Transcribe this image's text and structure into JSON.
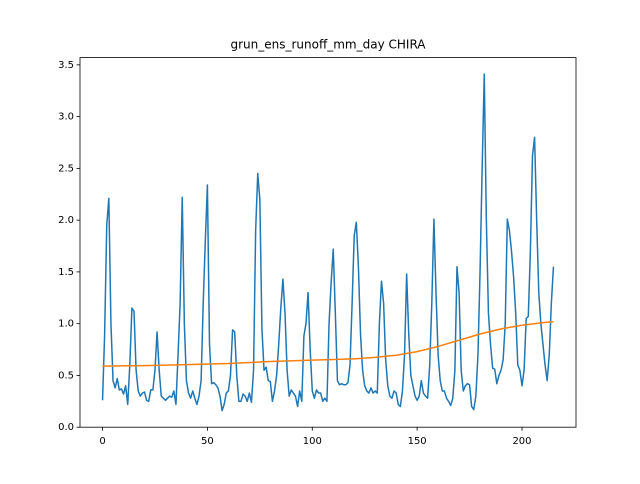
{
  "chart_data": {
    "type": "line",
    "title": "grun_ens_runoff_mm_day CHIRA",
    "xlim": [
      -10.75,
      225.75
    ],
    "xticks": [
      0,
      50,
      100,
      150,
      200
    ],
    "ylim": [
      0.0,
      3.57
    ],
    "yticks": [
      {
        "value": 0,
        "label": "0.0"
      },
      0.5,
      {
        "value": 1,
        "label": "1.0"
      },
      1.5,
      {
        "value": 2,
        "label": "2.0"
      },
      2.5,
      {
        "value": 3,
        "label": "3.0"
      },
      3.5
    ],
    "series": [
      {
        "color": "#1f77b4",
        "x": [
          0,
          1,
          2,
          3,
          4,
          5,
          6,
          7,
          8,
          9,
          10,
          11,
          12,
          13,
          14,
          15,
          16,
          17,
          18,
          19,
          20,
          21,
          22,
          23,
          24,
          25,
          26,
          27,
          28,
          29,
          30,
          31,
          32,
          33,
          34,
          35,
          36,
          37,
          38,
          39,
          40,
          41,
          42,
          43,
          44,
          45,
          46,
          47,
          48,
          49,
          50,
          51,
          52,
          53,
          54,
          55,
          56,
          57,
          58,
          59,
          60,
          61,
          62,
          63,
          64,
          65,
          66,
          67,
          68,
          69,
          70,
          71,
          72,
          73,
          74,
          75,
          76,
          77,
          78,
          79,
          80,
          81,
          82,
          83,
          84,
          85,
          86,
          87,
          88,
          89,
          90,
          91,
          92,
          93,
          94,
          95,
          96,
          97,
          98,
          99,
          100,
          101,
          102,
          103,
          104,
          105,
          106,
          107,
          108,
          109,
          110,
          111,
          112,
          113,
          114,
          115,
          116,
          117,
          118,
          119,
          120,
          121,
          122,
          123,
          124,
          125,
          126,
          127,
          128,
          129,
          130,
          131,
          132,
          133,
          134,
          135,
          136,
          137,
          138,
          139,
          140,
          141,
          142,
          143,
          144,
          145,
          146,
          147,
          148,
          149,
          150,
          151,
          152,
          153,
          154,
          155,
          156,
          157,
          158,
          159,
          160,
          161,
          162,
          163,
          164,
          165,
          166,
          167,
          168,
          169,
          170,
          171,
          172,
          173,
          174,
          175,
          176,
          177,
          178,
          179,
          180,
          181,
          182,
          183,
          184,
          185,
          186,
          187,
          188,
          189,
          190,
          191,
          192,
          193,
          194,
          195,
          196,
          197,
          198,
          199,
          200,
          201,
          202,
          203,
          204,
          205,
          206,
          207,
          208,
          209,
          210,
          211,
          212,
          213,
          214,
          215
        ],
        "values": [
          0.26,
          0.9,
          1.95,
          2.21,
          1.0,
          0.45,
          0.38,
          0.47,
          0.36,
          0.37,
          0.32,
          0.4,
          0.22,
          0.6,
          1.15,
          1.12,
          0.55,
          0.35,
          0.3,
          0.33,
          0.34,
          0.26,
          0.25,
          0.36,
          0.36,
          0.55,
          0.92,
          0.55,
          0.3,
          0.28,
          0.26,
          0.28,
          0.3,
          0.29,
          0.35,
          0.22,
          0.7,
          1.2,
          2.22,
          1.0,
          0.45,
          0.33,
          0.28,
          0.35,
          0.28,
          0.22,
          0.3,
          0.45,
          1.2,
          1.8,
          2.34,
          0.8,
          0.42,
          0.43,
          0.41,
          0.38,
          0.3,
          0.16,
          0.22,
          0.33,
          0.35,
          0.5,
          0.94,
          0.92,
          0.5,
          0.25,
          0.25,
          0.32,
          0.3,
          0.25,
          0.33,
          0.24,
          0.55,
          1.9,
          2.45,
          2.2,
          0.95,
          0.55,
          0.58,
          0.45,
          0.44,
          0.25,
          0.35,
          0.5,
          0.8,
          1.15,
          1.43,
          1.1,
          0.55,
          0.3,
          0.36,
          0.33,
          0.3,
          0.2,
          0.35,
          0.25,
          0.88,
          1.0,
          1.3,
          0.75,
          0.35,
          0.28,
          0.36,
          0.33,
          0.33,
          0.25,
          0.28,
          0.25,
          1.0,
          1.4,
          1.72,
          1.1,
          0.45,
          0.41,
          0.42,
          0.41,
          0.41,
          0.43,
          0.6,
          1.2,
          1.85,
          1.98,
          1.55,
          0.9,
          0.55,
          0.4,
          0.35,
          0.33,
          0.38,
          0.33,
          0.35,
          0.33,
          1.0,
          1.41,
          1.2,
          0.65,
          0.4,
          0.3,
          0.28,
          0.35,
          0.33,
          0.22,
          0.2,
          0.35,
          0.7,
          1.48,
          0.9,
          0.5,
          0.4,
          0.3,
          0.26,
          0.3,
          0.45,
          0.33,
          0.3,
          0.28,
          0.6,
          1.2,
          2.01,
          1.3,
          0.7,
          0.45,
          0.35,
          0.35,
          0.28,
          0.25,
          0.21,
          0.28,
          0.55,
          1.55,
          1.3,
          0.55,
          0.35,
          0.4,
          0.42,
          0.41,
          0.2,
          0.17,
          0.3,
          0.7,
          1.5,
          2.5,
          3.41,
          2.0,
          1.1,
          0.8,
          0.57,
          0.56,
          0.42,
          0.5,
          0.55,
          0.65,
          1.0,
          2.01,
          1.9,
          1.7,
          1.45,
          1.1,
          0.6,
          0.55,
          0.4,
          0.55,
          1.05,
          1.07,
          1.7,
          2.62,
          2.8,
          2.0,
          1.3,
          1.0,
          0.8,
          0.6,
          0.45,
          0.7,
          1.2,
          1.55
        ]
      },
      {
        "color": "#ff7f0e",
        "x": [
          0,
          20,
          40,
          60,
          80,
          100,
          120,
          130,
          140,
          150,
          160,
          170,
          180,
          190,
          200,
          210,
          215
        ],
        "values": [
          0.59,
          0.595,
          0.605,
          0.615,
          0.635,
          0.648,
          0.66,
          0.675,
          0.695,
          0.73,
          0.78,
          0.84,
          0.9,
          0.95,
          0.985,
          1.01,
          1.02
        ]
      }
    ]
  }
}
